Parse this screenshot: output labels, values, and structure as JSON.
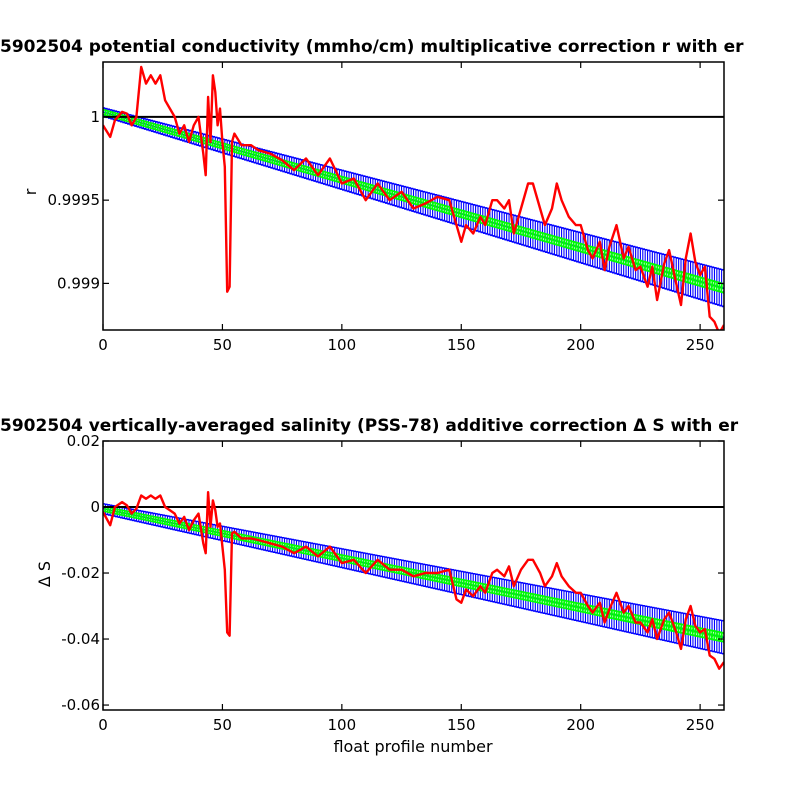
{
  "chart_data": [
    {
      "type": "line",
      "title": "5902504 potential conductivity (mmho/cm) multiplicative correction r with er",
      "xlabel": "",
      "ylabel": "r",
      "xlim": [
        0,
        260
      ],
      "ylim": [
        0.99872,
        1.00033
      ],
      "xticks": [
        0,
        50,
        100,
        150,
        200,
        250
      ],
      "xtick_labels": [
        "0",
        "50",
        "100",
        "150",
        "200",
        "250"
      ],
      "yticks": [
        0.999,
        0.9995,
        1.0
      ],
      "ytick_labels": [
        "0.999",
        "0.9995",
        "1"
      ],
      "grid": false,
      "reference_line": 1.0,
      "reference_color": "#000000",
      "fit_start": 1.00003,
      "fit_end": 0.99897,
      "err_start": 2.5e-05,
      "err_end": 0.00011,
      "series": [
        {
          "role": "raw correction",
          "color": "#ff0000",
          "x": [
            0,
            3,
            5,
            8,
            10,
            12,
            14,
            16,
            18,
            20,
            22,
            24,
            26,
            28,
            30,
            32,
            34,
            36,
            38,
            40,
            42,
            43,
            44,
            45,
            46,
            47,
            48,
            49,
            50,
            51,
            52,
            53,
            54,
            55,
            58,
            62,
            65,
            70,
            75,
            80,
            85,
            90,
            95,
            100,
            105,
            110,
            115,
            120,
            125,
            130,
            135,
            140,
            145,
            148,
            150,
            152,
            155,
            158,
            160,
            163,
            165,
            168,
            170,
            172,
            175,
            178,
            180,
            183,
            185,
            188,
            190,
            192,
            195,
            198,
            200,
            203,
            205,
            208,
            210,
            212,
            215,
            218,
            220,
            223,
            225,
            228,
            230,
            232,
            235,
            237,
            240,
            242,
            244,
            246,
            248,
            250,
            252,
            254,
            256,
            258,
            260
          ],
          "y": [
            0.99995,
            0.99988,
            0.99998,
            1.00003,
            1.00002,
            0.99995,
            1.0,
            1.0003,
            1.0002,
            1.00025,
            1.0002,
            1.00025,
            1.0001,
            1.00005,
            1.0,
            0.9999,
            0.99995,
            0.99985,
            0.99995,
            1.0,
            0.99978,
            0.99965,
            1.00012,
            0.99985,
            1.00025,
            1.00015,
            0.99995,
            1.00005,
            0.99985,
            0.9997,
            0.99895,
            0.99898,
            0.99985,
            0.9999,
            0.99983,
            0.99983,
            0.9998,
            0.99978,
            0.99974,
            0.99968,
            0.99975,
            0.99965,
            0.99975,
            0.9996,
            0.99963,
            0.9995,
            0.9996,
            0.9995,
            0.99955,
            0.99945,
            0.99948,
            0.99952,
            0.9995,
            0.99935,
            0.99925,
            0.99935,
            0.9993,
            0.9994,
            0.99935,
            0.9995,
            0.9995,
            0.99945,
            0.9995,
            0.9993,
            0.99945,
            0.9996,
            0.9996,
            0.99945,
            0.99935,
            0.99945,
            0.9996,
            0.9995,
            0.9994,
            0.99935,
            0.99935,
            0.9992,
            0.99915,
            0.99925,
            0.99908,
            0.99922,
            0.99935,
            0.99915,
            0.99922,
            0.99908,
            0.9991,
            0.99898,
            0.9991,
            0.9989,
            0.99912,
            0.9992,
            0.999,
            0.99887,
            0.99915,
            0.9993,
            0.99913,
            0.99905,
            0.9991,
            0.9988,
            0.99877,
            0.9987,
            0.99875
          ]
        },
        {
          "role": "fit with error bars",
          "color": "#0000ff",
          "x_start": 0,
          "x_end": 260
        },
        {
          "role": "fit markers",
          "color": "#00ff00",
          "x_start": 0,
          "x_end": 260
        }
      ]
    },
    {
      "type": "line",
      "title": "5902504 vertically-averaged salinity (PSS-78) additive correction Δ S with er",
      "xlabel": "float profile number",
      "ylabel": "Δ S",
      "xlim": [
        0,
        260
      ],
      "ylim": [
        -0.0615,
        0.02
      ],
      "xticks": [
        0,
        50,
        100,
        150,
        200,
        250
      ],
      "xtick_labels": [
        "0",
        "50",
        "100",
        "150",
        "200",
        "250"
      ],
      "yticks": [
        -0.06,
        -0.04,
        -0.02,
        0,
        0.02
      ],
      "ytick_labels": [
        "-0.06",
        "-0.04",
        "-0.02",
        "0",
        "0.02"
      ],
      "grid": false,
      "reference_line": 0,
      "reference_color": "#000000",
      "fit_start": -0.0005,
      "fit_end": -0.0395,
      "err_start": 0.0015,
      "err_end": 0.005,
      "series": [
        {
          "role": "raw correction",
          "color": "#ff0000",
          "x": [
            0,
            3,
            5,
            8,
            10,
            12,
            14,
            16,
            18,
            20,
            22,
            24,
            26,
            28,
            30,
            32,
            34,
            36,
            38,
            40,
            42,
            43,
            44,
            45,
            46,
            47,
            48,
            49,
            50,
            51,
            52,
            53,
            54,
            55,
            58,
            62,
            65,
            70,
            75,
            80,
            85,
            90,
            95,
            100,
            105,
            110,
            115,
            120,
            125,
            130,
            135,
            140,
            145,
            148,
            150,
            152,
            155,
            158,
            160,
            163,
            165,
            168,
            170,
            172,
            175,
            178,
            180,
            183,
            185,
            188,
            190,
            192,
            195,
            198,
            200,
            203,
            205,
            208,
            210,
            212,
            215,
            218,
            220,
            223,
            225,
            228,
            230,
            232,
            235,
            237,
            240,
            242,
            244,
            246,
            248,
            250,
            252,
            254,
            256,
            258,
            260
          ],
          "y": [
            -0.0015,
            -0.0055,
            0.0,
            0.0015,
            0.0005,
            -0.002,
            -0.0005,
            0.0035,
            0.0025,
            0.0035,
            0.0025,
            0.0035,
            0.0,
            -0.001,
            -0.002,
            -0.005,
            -0.003,
            -0.007,
            -0.004,
            -0.002,
            -0.011,
            -0.014,
            0.0045,
            -0.006,
            0.002,
            -0.001,
            -0.006,
            -0.005,
            -0.012,
            -0.019,
            -0.038,
            -0.039,
            -0.008,
            -0.0075,
            -0.0095,
            -0.0095,
            -0.01,
            -0.011,
            -0.012,
            -0.014,
            -0.012,
            -0.015,
            -0.012,
            -0.017,
            -0.016,
            -0.02,
            -0.016,
            -0.019,
            -0.019,
            -0.021,
            -0.02,
            -0.02,
            -0.019,
            -0.028,
            -0.029,
            -0.025,
            -0.027,
            -0.024,
            -0.026,
            -0.02,
            -0.019,
            -0.021,
            -0.018,
            -0.024,
            -0.019,
            -0.016,
            -0.016,
            -0.02,
            -0.024,
            -0.021,
            -0.017,
            -0.021,
            -0.024,
            -0.026,
            -0.026,
            -0.03,
            -0.032,
            -0.029,
            -0.035,
            -0.031,
            -0.026,
            -0.032,
            -0.03,
            -0.035,
            -0.035,
            -0.038,
            -0.034,
            -0.04,
            -0.034,
            -0.032,
            -0.038,
            -0.043,
            -0.034,
            -0.03,
            -0.036,
            -0.038,
            -0.037,
            -0.045,
            -0.046,
            -0.049,
            -0.047
          ]
        },
        {
          "role": "fit with error bars",
          "color": "#0000ff",
          "x_start": 0,
          "x_end": 260
        },
        {
          "role": "fit markers",
          "color": "#00ff00",
          "x_start": 0,
          "x_end": 260
        }
      ]
    }
  ]
}
